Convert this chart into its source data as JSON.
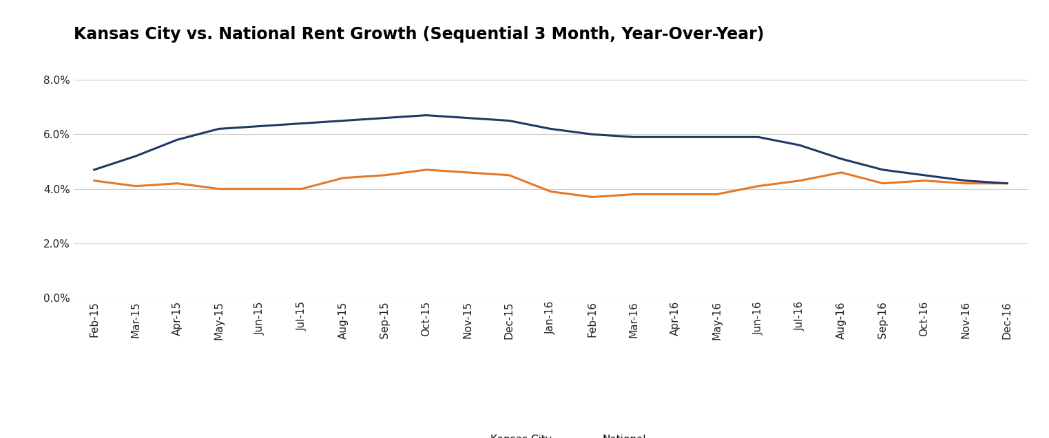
{
  "title": "Kansas City vs. National Rent Growth (Sequential 3 Month, Year-Over-Year)",
  "x_labels": [
    "Feb-15",
    "Mar-15",
    "Apr-15",
    "May-15",
    "Jun-15",
    "Jul-15",
    "Aug-15",
    "Sep-15",
    "Oct-15",
    "Nov-15",
    "Dec-15",
    "Jan-16",
    "Feb-16",
    "Mar-16",
    "Apr-16",
    "May-16",
    "Jun-16",
    "Jul-16",
    "Aug-16",
    "Sep-16",
    "Oct-16",
    "Nov-16",
    "Dec-16"
  ],
  "kansas_city": [
    0.043,
    0.041,
    0.042,
    0.04,
    0.04,
    0.04,
    0.044,
    0.045,
    0.047,
    0.046,
    0.045,
    0.039,
    0.037,
    0.038,
    0.038,
    0.038,
    0.041,
    0.043,
    0.046,
    0.042,
    0.043,
    0.042,
    0.042
  ],
  "national": [
    0.047,
    0.052,
    0.058,
    0.062,
    0.063,
    0.064,
    0.065,
    0.066,
    0.067,
    0.066,
    0.065,
    0.062,
    0.06,
    0.059,
    0.059,
    0.059,
    0.059,
    0.056,
    0.051,
    0.047,
    0.045,
    0.043,
    0.042
  ],
  "kansas_city_color": "#E87722",
  "national_color": "#1F3864",
  "line_width": 2.2,
  "ylim": [
    0.0,
    0.09
  ],
  "yticks": [
    0.0,
    0.02,
    0.04,
    0.06,
    0.08
  ],
  "background_color": "#ffffff",
  "grid_color": "#cccccc",
  "title_fontsize": 17,
  "tick_fontsize": 11,
  "legend_fontsize": 11
}
